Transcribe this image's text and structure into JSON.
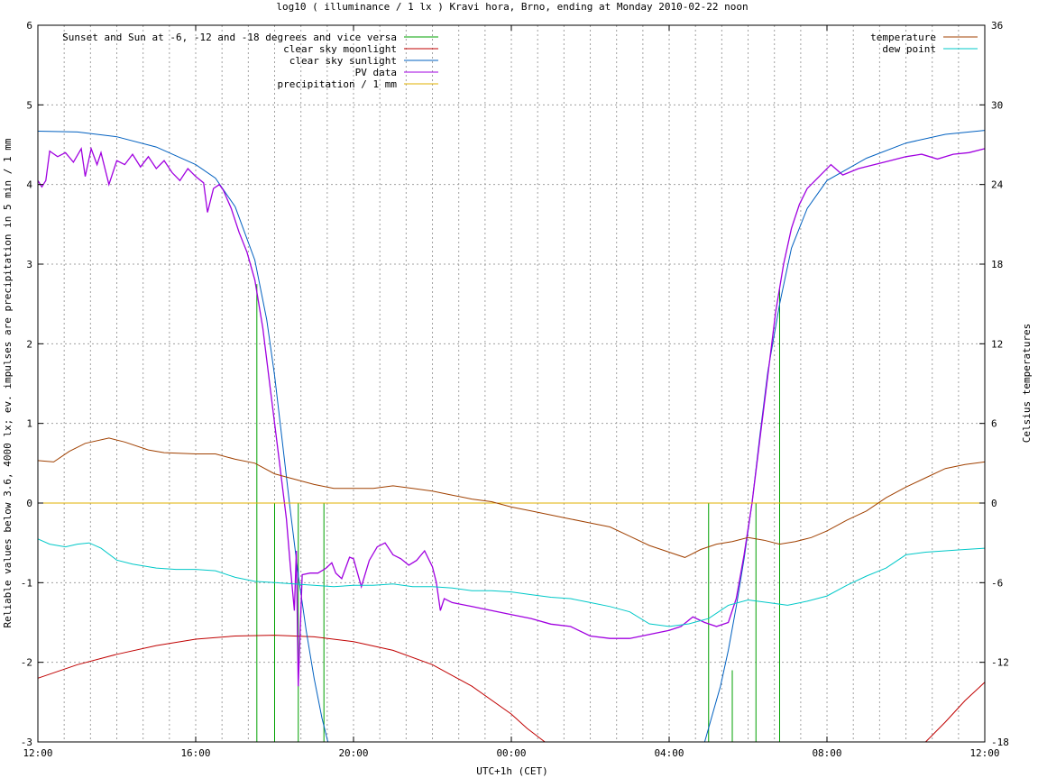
{
  "chart_data": {
    "type": "line",
    "title": "log10 ( illuminance / 1 lx ) Kravi hora, Brno, ending at Monday 2010-02-22 noon",
    "xlabel": "UTC+1h (CET)",
    "ylabel": "Reliable values below 3.6, 4000 lx; ev. impulses are precipitation in 5 min / 1 mm",
    "y2label": "Celsius temperatures",
    "x_unit": "hours since 12:00 (2010-02-21 12:00 .. 2010-02-22 12:00)",
    "xlim": [
      0,
      24
    ],
    "ylim": [
      -3,
      6
    ],
    "y2lim": [
      -18,
      36
    ],
    "x_ticks": [
      {
        "v": 0,
        "label": "12:00"
      },
      {
        "v": 4,
        "label": "16:00"
      },
      {
        "v": 8,
        "label": "20:00"
      },
      {
        "v": 12,
        "label": "00:00"
      },
      {
        "v": 16,
        "label": "04:00"
      },
      {
        "v": 20,
        "label": "08:00"
      },
      {
        "v": 24,
        "label": "12:00"
      }
    ],
    "x_grid_step": 0.6667,
    "y_ticks": [
      "-3",
      "-2",
      "-1",
      "0",
      "1",
      "2",
      "3",
      "4",
      "5",
      "6"
    ],
    "y2_ticks": [
      "-18",
      "-12",
      "-6",
      "0",
      "6",
      "12",
      "18",
      "24",
      "30",
      "36"
    ],
    "grid": true,
    "legend_left_position": "top-left",
    "legend_right_position": "top-right",
    "series": [
      {
        "name": "Sunset and Sun at -6, -12 and -18 degrees and vice versa",
        "axis": "y",
        "color": "#00a000",
        "style": "impulse",
        "impulses": [
          [
            5.55,
            2.75
          ],
          [
            6.0,
            0.0
          ],
          [
            6.6,
            0.0
          ],
          [
            7.25,
            0.0
          ],
          [
            17.0,
            0.0
          ],
          [
            17.6,
            -2.1
          ],
          [
            18.2,
            0.0
          ],
          [
            18.8,
            2.7
          ]
        ]
      },
      {
        "name": "clear sky moonlight",
        "axis": "y",
        "color": "#c00000",
        "points": [
          [
            0,
            -2.2
          ],
          [
            1,
            -2.03
          ],
          [
            2,
            -1.9
          ],
          [
            3,
            -1.79
          ],
          [
            4,
            -1.71
          ],
          [
            5,
            -1.67
          ],
          [
            6,
            -1.66
          ],
          [
            7,
            -1.68
          ],
          [
            8,
            -1.74
          ],
          [
            9,
            -1.85
          ],
          [
            10,
            -2.03
          ],
          [
            11,
            -2.3
          ],
          [
            12,
            -2.65
          ],
          [
            12.4,
            -2.83
          ],
          [
            12.85,
            -3.0
          ],
          [
            22.5,
            -3.0
          ],
          [
            23,
            -2.75
          ],
          [
            23.5,
            -2.48
          ],
          [
            24,
            -2.25
          ]
        ]
      },
      {
        "name": "clear sky sunlight",
        "axis": "y",
        "color": "#0060c0",
        "points": [
          [
            0,
            4.67
          ],
          [
            1,
            4.66
          ],
          [
            2,
            4.6
          ],
          [
            3,
            4.47
          ],
          [
            4,
            4.25
          ],
          [
            4.5,
            4.08
          ],
          [
            5,
            3.72
          ],
          [
            5.5,
            3.05
          ],
          [
            5.8,
            2.3
          ],
          [
            6.0,
            1.6
          ],
          [
            6.2,
            0.75
          ],
          [
            6.4,
            -0.1
          ],
          [
            6.6,
            -0.9
          ],
          [
            6.8,
            -1.6
          ],
          [
            7.0,
            -2.2
          ],
          [
            7.2,
            -2.7
          ],
          [
            7.35,
            -3.0
          ],
          [
            16.9,
            -3.0
          ],
          [
            17.1,
            -2.65
          ],
          [
            17.3,
            -2.3
          ],
          [
            17.5,
            -1.85
          ],
          [
            17.7,
            -1.3
          ],
          [
            17.9,
            -0.7
          ],
          [
            18.1,
            0.0
          ],
          [
            18.3,
            0.85
          ],
          [
            18.5,
            1.65
          ],
          [
            18.8,
            2.5
          ],
          [
            19.1,
            3.2
          ],
          [
            19.5,
            3.7
          ],
          [
            20,
            4.05
          ],
          [
            21,
            4.33
          ],
          [
            22,
            4.52
          ],
          [
            23,
            4.63
          ],
          [
            24,
            4.68
          ]
        ]
      },
      {
        "name": "PV data",
        "axis": "y",
        "color": "#a000e0",
        "points": [
          [
            0,
            4.05
          ],
          [
            0.1,
            3.97
          ],
          [
            0.2,
            4.05
          ],
          [
            0.3,
            4.42
          ],
          [
            0.5,
            4.35
          ],
          [
            0.7,
            4.4
          ],
          [
            0.9,
            4.28
          ],
          [
            1.1,
            4.45
          ],
          [
            1.2,
            4.1
          ],
          [
            1.35,
            4.45
          ],
          [
            1.5,
            4.25
          ],
          [
            1.6,
            4.4
          ],
          [
            1.8,
            4.0
          ],
          [
            2.0,
            4.3
          ],
          [
            2.2,
            4.25
          ],
          [
            2.4,
            4.38
          ],
          [
            2.6,
            4.22
          ],
          [
            2.8,
            4.35
          ],
          [
            3.0,
            4.2
          ],
          [
            3.2,
            4.3
          ],
          [
            3.4,
            4.15
          ],
          [
            3.6,
            4.05
          ],
          [
            3.8,
            4.2
          ],
          [
            4.0,
            4.1
          ],
          [
            4.2,
            4.02
          ],
          [
            4.3,
            3.65
          ],
          [
            4.45,
            3.95
          ],
          [
            4.6,
            4.0
          ],
          [
            4.7,
            3.93
          ],
          [
            4.9,
            3.7
          ],
          [
            5.1,
            3.4
          ],
          [
            5.3,
            3.15
          ],
          [
            5.5,
            2.8
          ],
          [
            5.7,
            2.2
          ],
          [
            5.9,
            1.4
          ],
          [
            6.1,
            0.6
          ],
          [
            6.3,
            -0.2
          ],
          [
            6.4,
            -0.8
          ],
          [
            6.5,
            -1.35
          ],
          [
            6.55,
            -0.6
          ],
          [
            6.6,
            -2.3
          ],
          [
            6.7,
            -0.9
          ],
          [
            6.9,
            -0.88
          ],
          [
            7.1,
            -0.88
          ],
          [
            7.3,
            -0.82
          ],
          [
            7.45,
            -0.75
          ],
          [
            7.55,
            -0.88
          ],
          [
            7.7,
            -0.95
          ],
          [
            7.9,
            -0.68
          ],
          [
            8.0,
            -0.7
          ],
          [
            8.2,
            -1.05
          ],
          [
            8.4,
            -0.72
          ],
          [
            8.6,
            -0.55
          ],
          [
            8.8,
            -0.5
          ],
          [
            9.0,
            -0.65
          ],
          [
            9.2,
            -0.7
          ],
          [
            9.4,
            -0.78
          ],
          [
            9.6,
            -0.72
          ],
          [
            9.8,
            -0.6
          ],
          [
            10.0,
            -0.8
          ],
          [
            10.1,
            -1.0
          ],
          [
            10.2,
            -1.35
          ],
          [
            10.3,
            -1.2
          ],
          [
            10.5,
            -1.25
          ],
          [
            11,
            -1.3
          ],
          [
            11.5,
            -1.35
          ],
          [
            12,
            -1.4
          ],
          [
            12.5,
            -1.45
          ],
          [
            13,
            -1.52
          ],
          [
            13.5,
            -1.55
          ],
          [
            14,
            -1.67
          ],
          [
            14.5,
            -1.7
          ],
          [
            15,
            -1.7
          ],
          [
            15.5,
            -1.65
          ],
          [
            16,
            -1.6
          ],
          [
            16.3,
            -1.55
          ],
          [
            16.6,
            -1.43
          ],
          [
            16.9,
            -1.5
          ],
          [
            17.2,
            -1.55
          ],
          [
            17.5,
            -1.5
          ],
          [
            17.7,
            -1.2
          ],
          [
            17.9,
            -0.65
          ],
          [
            18.1,
            0.0
          ],
          [
            18.3,
            0.8
          ],
          [
            18.5,
            1.6
          ],
          [
            18.7,
            2.4
          ],
          [
            18.9,
            3.0
          ],
          [
            19.1,
            3.45
          ],
          [
            19.3,
            3.75
          ],
          [
            19.5,
            3.95
          ],
          [
            19.8,
            4.1
          ],
          [
            20.1,
            4.25
          ],
          [
            20.4,
            4.12
          ],
          [
            20.8,
            4.2
          ],
          [
            21.2,
            4.25
          ],
          [
            21.6,
            4.3
          ],
          [
            22.0,
            4.35
          ],
          [
            22.4,
            4.38
          ],
          [
            22.8,
            4.32
          ],
          [
            23.2,
            4.38
          ],
          [
            23.6,
            4.4
          ],
          [
            24,
            4.45
          ]
        ]
      },
      {
        "name": "precipitation / 1 mm",
        "axis": "y",
        "color": "#e0b000",
        "points": [
          [
            0,
            0.0
          ],
          [
            24,
            0.0
          ]
        ]
      },
      {
        "name": "temperature",
        "axis": "y2",
        "color": "#a04000",
        "points": [
          [
            0,
            3.2
          ],
          [
            0.4,
            3.1
          ],
          [
            0.8,
            3.9
          ],
          [
            1.2,
            4.5
          ],
          [
            1.8,
            4.9
          ],
          [
            2.2,
            4.6
          ],
          [
            2.8,
            4.0
          ],
          [
            3.2,
            3.8
          ],
          [
            4,
            3.7
          ],
          [
            4.5,
            3.7
          ],
          [
            5,
            3.3
          ],
          [
            5.5,
            3.0
          ],
          [
            6,
            2.2
          ],
          [
            6.5,
            1.8
          ],
          [
            7,
            1.4
          ],
          [
            7.5,
            1.1
          ],
          [
            8,
            1.1
          ],
          [
            8.5,
            1.1
          ],
          [
            9,
            1.3
          ],
          [
            9.5,
            1.1
          ],
          [
            10,
            0.9
          ],
          [
            10.5,
            0.6
          ],
          [
            11,
            0.3
          ],
          [
            11.5,
            0.1
          ],
          [
            12,
            -0.3
          ],
          [
            12.5,
            -0.6
          ],
          [
            13,
            -0.9
          ],
          [
            13.5,
            -1.2
          ],
          [
            14,
            -1.5
          ],
          [
            14.5,
            -1.8
          ],
          [
            15,
            -2.5
          ],
          [
            15.5,
            -3.2
          ],
          [
            16,
            -3.7
          ],
          [
            16.4,
            -4.1
          ],
          [
            16.8,
            -3.5
          ],
          [
            17.2,
            -3.1
          ],
          [
            17.6,
            -2.9
          ],
          [
            18,
            -2.6
          ],
          [
            18.4,
            -2.8
          ],
          [
            18.8,
            -3.1
          ],
          [
            19.2,
            -2.9
          ],
          [
            19.6,
            -2.6
          ],
          [
            20,
            -2.1
          ],
          [
            20.5,
            -1.3
          ],
          [
            21,
            -0.6
          ],
          [
            21.5,
            0.4
          ],
          [
            22,
            1.2
          ],
          [
            22.5,
            1.9
          ],
          [
            23,
            2.6
          ],
          [
            23.5,
            2.9
          ],
          [
            24,
            3.1
          ]
        ]
      },
      {
        "name": "dew point",
        "axis": "y2",
        "color": "#00c8c8",
        "points": [
          [
            0,
            -2.7
          ],
          [
            0.3,
            -3.1
          ],
          [
            0.7,
            -3.3
          ],
          [
            1,
            -3.1
          ],
          [
            1.3,
            -3.0
          ],
          [
            1.6,
            -3.4
          ],
          [
            2,
            -4.3
          ],
          [
            2.4,
            -4.6
          ],
          [
            3,
            -4.9
          ],
          [
            3.5,
            -5.0
          ],
          [
            4,
            -5.0
          ],
          [
            4.5,
            -5.1
          ],
          [
            5,
            -5.6
          ],
          [
            5.5,
            -5.9
          ],
          [
            6,
            -6.0
          ],
          [
            6.5,
            -6.1
          ],
          [
            7,
            -6.2
          ],
          [
            7.5,
            -6.3
          ],
          [
            8,
            -6.2
          ],
          [
            8.5,
            -6.2
          ],
          [
            9,
            -6.1
          ],
          [
            9.5,
            -6.3
          ],
          [
            10,
            -6.3
          ],
          [
            10.5,
            -6.4
          ],
          [
            11,
            -6.6
          ],
          [
            11.5,
            -6.6
          ],
          [
            12,
            -6.7
          ],
          [
            12.5,
            -6.9
          ],
          [
            13,
            -7.1
          ],
          [
            13.5,
            -7.2
          ],
          [
            14,
            -7.5
          ],
          [
            14.5,
            -7.8
          ],
          [
            15,
            -8.2
          ],
          [
            15.5,
            -9.1
          ],
          [
            16,
            -9.3
          ],
          [
            16.5,
            -9.1
          ],
          [
            17,
            -8.7
          ],
          [
            17.5,
            -7.7
          ],
          [
            18,
            -7.3
          ],
          [
            18.5,
            -7.5
          ],
          [
            19,
            -7.7
          ],
          [
            19.5,
            -7.4
          ],
          [
            20,
            -7.0
          ],
          [
            20.5,
            -6.2
          ],
          [
            21,
            -5.5
          ],
          [
            21.5,
            -4.9
          ],
          [
            22,
            -3.9
          ],
          [
            22.5,
            -3.7
          ],
          [
            23,
            -3.6
          ],
          [
            23.5,
            -3.5
          ],
          [
            24,
            -3.4
          ]
        ]
      }
    ]
  }
}
